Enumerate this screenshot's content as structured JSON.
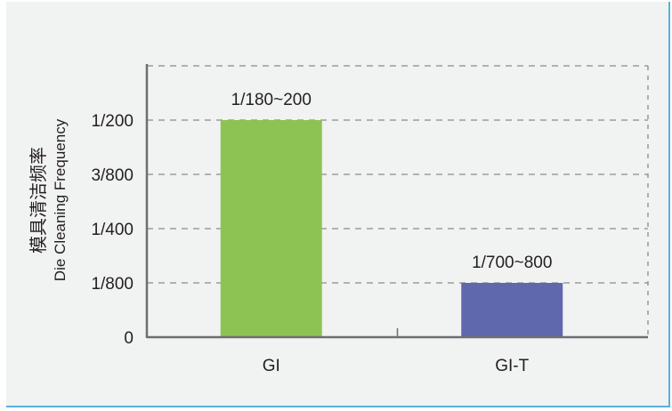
{
  "chart_data": {
    "type": "bar",
    "title": "",
    "ylabel_cn": "模具清洁频率",
    "ylabel": "Die Cleaning Frequency",
    "xlabel": "",
    "categories": [
      "GI",
      "GI-T"
    ],
    "values": [
      0.005,
      0.00125
    ],
    "data_labels": [
      "1/180~200",
      "1/700~800"
    ],
    "bar_colors": [
      "#8dc353",
      "#5f67ad"
    ],
    "ylim": [
      0,
      0.00625
    ],
    "yticks": [
      0,
      0.00125,
      0.0025,
      0.00375,
      0.005,
      0.00625
    ],
    "ytick_labels": [
      "0",
      "1/800",
      "1/400",
      "3/800",
      "1/200",
      ""
    ],
    "grid": "horizontal dashed",
    "legend": "none"
  }
}
